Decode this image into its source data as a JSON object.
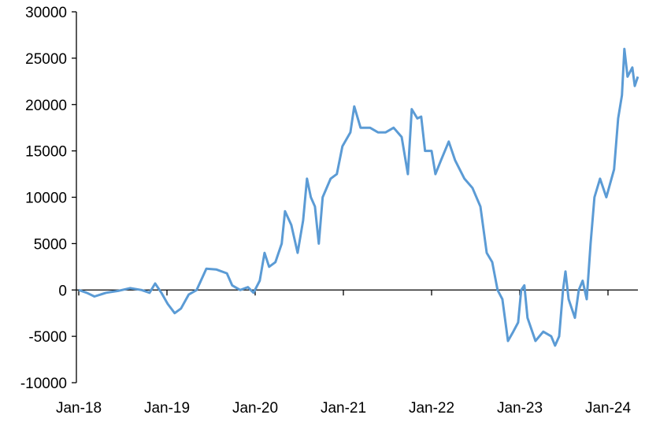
{
  "chart_data": {
    "type": "line",
    "title": "",
    "xlabel": "",
    "ylabel": "",
    "ylim": [
      -10000,
      30000
    ],
    "yticks": [
      -10000,
      -5000,
      0,
      5000,
      10000,
      15000,
      20000,
      25000,
      30000
    ],
    "xticks": [
      {
        "date": "2018-01-01",
        "label": "Jan-18"
      },
      {
        "date": "2019-01-01",
        "label": "Jan-19"
      },
      {
        "date": "2020-01-01",
        "label": "Jan-20"
      },
      {
        "date": "2021-01-01",
        "label": "Jan-21"
      },
      {
        "date": "2022-01-01",
        "label": "Jan-22"
      },
      {
        "date": "2023-01-01",
        "label": "Jan-23"
      },
      {
        "date": "2024-01-01",
        "label": "Jan-24"
      }
    ],
    "grid": false,
    "line_color": "#5B9BD5",
    "series": [
      {
        "x": [
          "2018-01-01",
          "2018-02-03",
          "2018-03-07",
          "2018-04-24",
          "2018-06-13",
          "2018-08-01",
          "2018-09-18",
          "2018-10-21",
          "2018-11-13",
          "2018-12-09",
          "2019-01-04",
          "2019-02-02",
          "2019-02-28",
          "2019-04-01",
          "2019-05-04",
          "2019-06-13",
          "2019-07-25",
          "2019-09-06",
          "2019-09-28",
          "2019-10-31",
          "2019-12-02",
          "2019-12-25",
          "2020-01-20",
          "2020-02-09",
          "2020-02-28",
          "2020-03-25",
          "2020-04-20",
          "2020-05-04",
          "2020-05-30",
          "2020-06-25",
          "2020-07-18",
          "2020-08-03",
          "2020-08-19",
          "2020-09-05",
          "2020-09-21",
          "2020-10-07",
          "2020-11-09",
          "2020-12-05",
          "2020-12-28",
          "2021-01-30",
          "2021-02-15",
          "2021-03-13",
          "2021-04-21",
          "2021-05-24",
          "2021-06-25",
          "2021-07-28",
          "2021-08-30",
          "2021-09-25",
          "2021-10-11",
          "2021-11-03",
          "2021-11-19",
          "2021-12-05",
          "2022-01-01",
          "2022-01-17",
          "2022-02-09",
          "2022-03-13",
          "2022-04-08",
          "2022-05-17",
          "2022-06-19",
          "2022-07-22",
          "2022-08-17",
          "2022-09-09",
          "2022-10-01",
          "2022-10-21",
          "2022-11-13",
          "2022-12-05",
          "2022-12-25",
          "2023-01-07",
          "2023-01-20",
          "2023-02-02",
          "2023-03-07",
          "2023-04-08",
          "2023-05-11",
          "2023-05-27",
          "2023-06-13",
          "2023-06-29",
          "2023-07-09",
          "2023-07-22",
          "2023-08-17",
          "2023-09-02",
          "2023-09-18",
          "2023-10-05",
          "2023-10-21",
          "2023-11-06",
          "2023-11-29",
          "2023-12-25",
          "2024-01-10",
          "2024-01-26",
          "2024-02-12",
          "2024-02-28",
          "2024-03-09",
          "2024-03-22",
          "2024-04-11",
          "2024-04-21",
          "2024-05-04"
        ],
        "y": [
          0,
          -300,
          -700,
          -300,
          -100,
          200,
          0,
          -300,
          700,
          -300,
          -1500,
          -2500,
          -2000,
          -500,
          0,
          2300,
          2200,
          1800,
          500,
          0,
          300,
          -300,
          1000,
          4000,
          2500,
          3000,
          5000,
          8500,
          7000,
          4000,
          7500,
          12000,
          10000,
          9000,
          5000,
          10000,
          12000,
          12500,
          15500,
          17000,
          19800,
          17500,
          17500,
          17000,
          17000,
          17500,
          16500,
          12500,
          19500,
          18500,
          18700,
          15000,
          15000,
          12500,
          14000,
          16000,
          14000,
          12000,
          11000,
          9000,
          4000,
          3000,
          0,
          -1000,
          -5500,
          -4500,
          -3500,
          0,
          500,
          -3000,
          -5500,
          -4500,
          -5000,
          -6000,
          -5000,
          0,
          2000,
          -1000,
          -3000,
          0,
          1000,
          -1000,
          5000,
          10000,
          12000,
          10000,
          11500,
          13000,
          18500,
          21000,
          26000,
          23000,
          24000,
          22000,
          23000
        ]
      }
    ]
  }
}
